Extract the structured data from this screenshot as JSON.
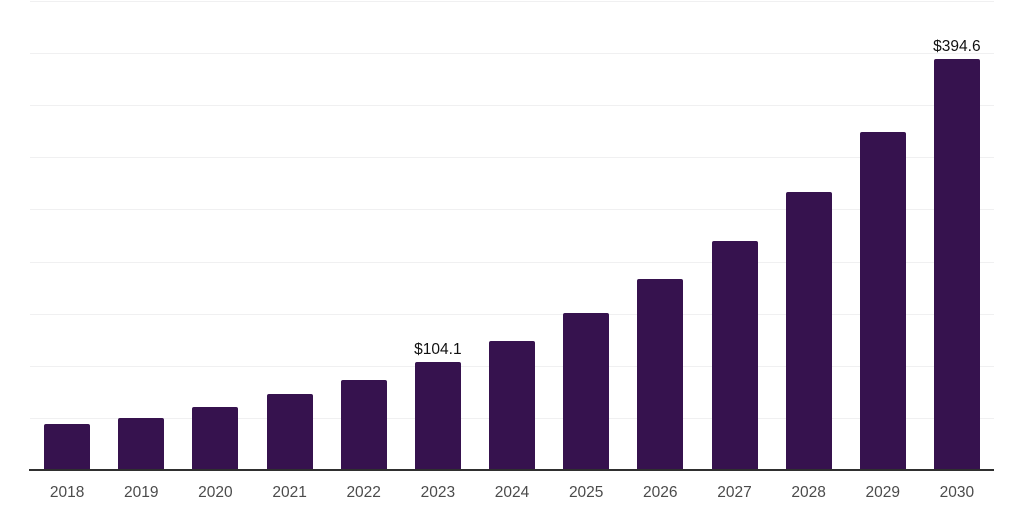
{
  "chart_data": {
    "type": "bar",
    "title": "",
    "xlabel": "",
    "ylabel": "",
    "categories": [
      "2018",
      "2019",
      "2020",
      "2021",
      "2022",
      "2023",
      "2024",
      "2025",
      "2026",
      "2027",
      "2028",
      "2029",
      "2030"
    ],
    "values": [
      44.1,
      49.9,
      60.2,
      72.9,
      86.0,
      104.1,
      124.1,
      150.4,
      183.3,
      219.4,
      266.7,
      324.3,
      394.6
    ],
    "value_prefix": "$",
    "annotations": [
      {
        "category": "2023",
        "text": "$104.1"
      },
      {
        "category": "2030",
        "text": "$394.6"
      }
    ],
    "ylim": [
      0,
      450
    ],
    "grid_step": 50,
    "grid": true,
    "y_axis_labels_visible": false,
    "legend_position": "none",
    "colors": {
      "bar": "#36124e",
      "grid_line": "#f0f0f1",
      "axis_line": "#2f2f2f",
      "tick_label": "#4b4b4b",
      "value_label": "#111111",
      "background": "#ffffff"
    }
  }
}
